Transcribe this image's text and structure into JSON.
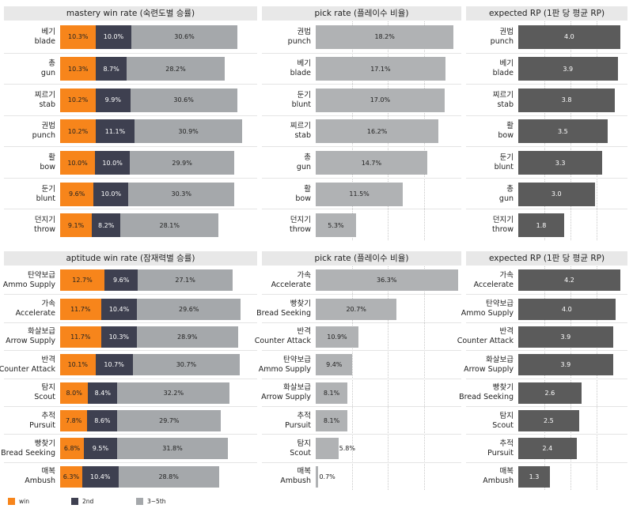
{
  "colors": {
    "win": "#f7851b",
    "second": "#3e4050",
    "third_fifth": "#a5a8ab",
    "pick": "#b0b2b4",
    "rp": "#5b5b5b",
    "title_bg": "#e8e8e8"
  },
  "legend": [
    {
      "label": "win",
      "color": "#f7851b"
    },
    {
      "label": "2nd",
      "color": "#3e4050"
    },
    {
      "label": "3~5th",
      "color": "#a5a8ab"
    }
  ],
  "chart_data": [
    {
      "type": "bar",
      "stacked": true,
      "title": "mastery win rate (숙련도별 승률)",
      "series_names": [
        "win",
        "2nd",
        "3~5th"
      ],
      "categories": [
        {
          "ko": "베기",
          "en": "blade"
        },
        {
          "ko": "총",
          "en": "gun"
        },
        {
          "ko": "찌르기",
          "en": "stab"
        },
        {
          "ko": "권법",
          "en": "punch"
        },
        {
          "ko": "활",
          "en": "bow"
        },
        {
          "ko": "둔기",
          "en": "blunt"
        },
        {
          "ko": "던지기",
          "en": "throw"
        }
      ],
      "series": [
        {
          "name": "win",
          "values": [
            10.3,
            10.3,
            10.2,
            10.2,
            10.0,
            9.6,
            9.1
          ],
          "labels": [
            "10.3%",
            "10.3%",
            "10.2%",
            "10.2%",
            "10.0%",
            "9.6%",
            "9.1%"
          ]
        },
        {
          "name": "2nd",
          "values": [
            10.0,
            8.7,
            9.9,
            11.1,
            10.0,
            10.0,
            8.2
          ],
          "labels": [
            "10.0%",
            "8.7%",
            "9.9%",
            "11.1%",
            "10.0%",
            "10.0%",
            "8.2%"
          ]
        },
        {
          "name": "3~5th",
          "values": [
            30.6,
            28.2,
            30.6,
            30.9,
            29.9,
            30.3,
            28.1
          ],
          "labels": [
            "30.6%",
            "28.2%",
            "30.6%",
            "30.9%",
            "29.9%",
            "30.3%",
            "28.1%"
          ]
        }
      ],
      "xlim": [
        0,
        56
      ]
    },
    {
      "type": "bar",
      "title": "pick rate (플레이수 비율)",
      "categories": [
        {
          "ko": "권법",
          "en": "punch"
        },
        {
          "ko": "베기",
          "en": "blade"
        },
        {
          "ko": "둔기",
          "en": "blunt"
        },
        {
          "ko": "찌르기",
          "en": "stab"
        },
        {
          "ko": "총",
          "en": "gun"
        },
        {
          "ko": "활",
          "en": "bow"
        },
        {
          "ko": "던지기",
          "en": "throw"
        }
      ],
      "values": [
        18.2,
        17.1,
        17.0,
        16.2,
        14.7,
        11.5,
        5.3
      ],
      "labels": [
        "18.2%",
        "17.1%",
        "17.0%",
        "16.2%",
        "14.7%",
        "11.5%",
        "5.3%"
      ],
      "xlim": [
        0,
        19
      ]
    },
    {
      "type": "bar",
      "title": "expected RP (1판 당 평균 RP)",
      "categories": [
        {
          "ko": "권법",
          "en": "punch"
        },
        {
          "ko": "베기",
          "en": "blade"
        },
        {
          "ko": "찌르기",
          "en": "stab"
        },
        {
          "ko": "활",
          "en": "bow"
        },
        {
          "ko": "둔기",
          "en": "blunt"
        },
        {
          "ko": "총",
          "en": "gun"
        },
        {
          "ko": "던지기",
          "en": "throw"
        }
      ],
      "values": [
        4.0,
        3.9,
        3.8,
        3.5,
        3.3,
        3.0,
        1.8
      ],
      "labels": [
        "4.0",
        "3.9",
        "3.8",
        "3.5",
        "3.3",
        "3.0",
        "1.8"
      ],
      "xlim": [
        0,
        4.1
      ]
    },
    {
      "type": "bar",
      "stacked": true,
      "title": "aptitude win rate (잠재력별 승률)",
      "series_names": [
        "win",
        "2nd",
        "3~5th"
      ],
      "categories": [
        {
          "ko": "탄약보급",
          "en": "Ammo Supply"
        },
        {
          "ko": "가속",
          "en": "Accelerate"
        },
        {
          "ko": "화살보급",
          "en": "Arrow Supply"
        },
        {
          "ko": "반격",
          "en": "Counter Attack"
        },
        {
          "ko": "탐지",
          "en": "Scout"
        },
        {
          "ko": "추적",
          "en": "Pursuit"
        },
        {
          "ko": "빵찾기",
          "en": "Bread Seeking"
        },
        {
          "ko": "매복",
          "en": "Ambush"
        }
      ],
      "series": [
        {
          "name": "win",
          "values": [
            12.7,
            11.7,
            11.7,
            10.1,
            8.0,
            7.8,
            6.8,
            6.3
          ],
          "labels": [
            "12.7%",
            "11.7%",
            "11.7%",
            "10.1%",
            "8.0%",
            "7.8%",
            "6.8%",
            "6.3%"
          ]
        },
        {
          "name": "2nd",
          "values": [
            9.6,
            10.4,
            10.3,
            10.7,
            8.4,
            8.6,
            9.5,
            10.4
          ],
          "labels": [
            "9.6%",
            "10.4%",
            "10.3%",
            "10.7%",
            "8.4%",
            "8.6%",
            "9.5%",
            "10.4%"
          ]
        },
        {
          "name": "3~5th",
          "values": [
            27.1,
            29.6,
            28.9,
            30.7,
            32.2,
            29.7,
            31.8,
            28.8
          ],
          "labels": [
            "27.1%",
            "29.6%",
            "28.9%",
            "30.7%",
            "32.2%",
            "29.7%",
            "31.8%",
            "28.8%"
          ]
        }
      ],
      "xlim": [
        0,
        56
      ]
    },
    {
      "type": "bar",
      "title": "pick rate (플레이수 비율)",
      "categories": [
        {
          "ko": "가속",
          "en": "Accelerate"
        },
        {
          "ko": "빵찾기",
          "en": "Bread Seeking"
        },
        {
          "ko": "반격",
          "en": "Counter Attack"
        },
        {
          "ko": "탄약보급",
          "en": "Ammo Supply"
        },
        {
          "ko": "화살보급",
          "en": "Arrow Supply"
        },
        {
          "ko": "추적",
          "en": "Pursuit"
        },
        {
          "ko": "탐지",
          "en": "Scout"
        },
        {
          "ko": "매복",
          "en": "Ambush"
        }
      ],
      "values": [
        36.3,
        20.7,
        10.9,
        9.4,
        8.1,
        8.1,
        5.8,
        0.7
      ],
      "labels": [
        "36.3%",
        "20.7%",
        "10.9%",
        "9.4%",
        "8.1%",
        "8.1%",
        "5.8%",
        "0.7%"
      ],
      "xlim": [
        0,
        36.8
      ]
    },
    {
      "type": "bar",
      "title": "expected RP (1판 당 평균 RP)",
      "categories": [
        {
          "ko": "가속",
          "en": "Accelerate"
        },
        {
          "ko": "탄약보급",
          "en": "Ammo Supply"
        },
        {
          "ko": "반격",
          "en": "Counter Attack"
        },
        {
          "ko": "화살보급",
          "en": "Arrow Supply"
        },
        {
          "ko": "빵찾기",
          "en": "Bread Seeking"
        },
        {
          "ko": "탐지",
          "en": "Scout"
        },
        {
          "ko": "추적",
          "en": "Pursuit"
        },
        {
          "ko": "매복",
          "en": "Ambush"
        }
      ],
      "values": [
        4.2,
        4.0,
        3.9,
        3.9,
        2.6,
        2.5,
        2.4,
        1.3
      ],
      "labels": [
        "4.2",
        "4.0",
        "3.9",
        "3.9",
        "2.6",
        "2.5",
        "2.4",
        "1.3"
      ],
      "xlim": [
        0,
        4.3
      ]
    }
  ]
}
